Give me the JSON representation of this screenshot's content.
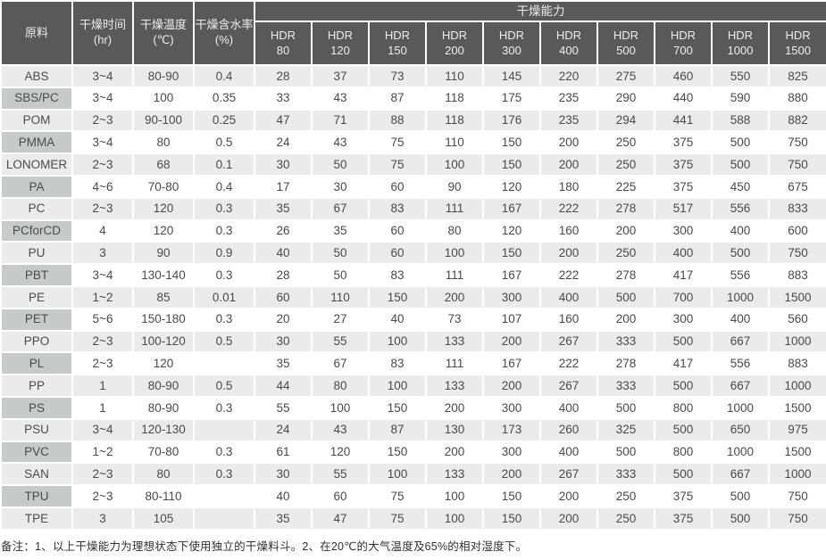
{
  "table": {
    "headers": {
      "material": "原料",
      "time": "干燥时间\n(hr)",
      "temperature": "干燥温度\n(℃)",
      "moisture": "干燥含水率\n(%)",
      "capacity_group": "干燥能力",
      "hdr_models": [
        "HDR\n80",
        "HDR\n120",
        "HDR\n150",
        "HDR\n200",
        "HDR\n300",
        "HDR\n400",
        "HDR\n500",
        "HDR\n700",
        "HDR\n1000",
        "HDR\n1500"
      ]
    },
    "rows": [
      {
        "material": "ABS",
        "time": "3~4",
        "temperature": "80-90",
        "moisture": "0.4",
        "capacities": [
          "28",
          "37",
          "73",
          "110",
          "145",
          "220",
          "275",
          "460",
          "550",
          "825"
        ]
      },
      {
        "material": "SBS/PC",
        "time": "3~4",
        "temperature": "100",
        "moisture": "0.35",
        "capacities": [
          "33",
          "43",
          "87",
          "118",
          "175",
          "235",
          "290",
          "440",
          "590",
          "880"
        ]
      },
      {
        "material": "POM",
        "time": "2~3",
        "temperature": "90-100",
        "moisture": "0.25",
        "capacities": [
          "47",
          "71",
          "88",
          "118",
          "176",
          "235",
          "294",
          "441",
          "588",
          "882"
        ]
      },
      {
        "material": "PMMA",
        "time": "3~4",
        "temperature": "80",
        "moisture": "0.5",
        "capacities": [
          "24",
          "43",
          "75",
          "110",
          "150",
          "200",
          "250",
          "375",
          "500",
          "750"
        ]
      },
      {
        "material": "LONOMER",
        "time": "2~3",
        "temperature": "68",
        "moisture": "0.1",
        "capacities": [
          "30",
          "50",
          "75",
          "100",
          "150",
          "200",
          "250",
          "375",
          "500",
          "750"
        ]
      },
      {
        "material": "PA",
        "time": "4~6",
        "temperature": "70-80",
        "moisture": "0.4",
        "capacities": [
          "17",
          "30",
          "60",
          "90",
          "120",
          "180",
          "225",
          "375",
          "450",
          "675"
        ]
      },
      {
        "material": "PC",
        "time": "2~3",
        "temperature": "120",
        "moisture": "0.3",
        "capacities": [
          "35",
          "67",
          "83",
          "111",
          "167",
          "222",
          "278",
          "517",
          "556",
          "833"
        ]
      },
      {
        "material": "PCforCD",
        "time": "4",
        "temperature": "120",
        "moisture": "0.3",
        "capacities": [
          "26",
          "35",
          "60",
          "80",
          "120",
          "160",
          "200",
          "300",
          "400",
          "600"
        ]
      },
      {
        "material": "PU",
        "time": "3",
        "temperature": "90",
        "moisture": "0.9",
        "capacities": [
          "40",
          "50",
          "60",
          "100",
          "150",
          "200",
          "250",
          "400",
          "500",
          "750"
        ]
      },
      {
        "material": "PBT",
        "time": "3~4",
        "temperature": "130-140",
        "moisture": "0.3",
        "capacities": [
          "28",
          "50",
          "83",
          "111",
          "167",
          "222",
          "278",
          "417",
          "556",
          "883"
        ]
      },
      {
        "material": "PE",
        "time": "1~2",
        "temperature": "85",
        "moisture": "0.01",
        "capacities": [
          "60",
          "110",
          "150",
          "200",
          "300",
          "400",
          "500",
          "700",
          "1000",
          "1500"
        ]
      },
      {
        "material": "PET",
        "time": "5~6",
        "temperature": "150-180",
        "moisture": "0.3",
        "capacities": [
          "20",
          "27",
          "40",
          "73",
          "107",
          "160",
          "200",
          "300",
          "400",
          "560"
        ]
      },
      {
        "material": "PPO",
        "time": "2~3",
        "temperature": "100-120",
        "moisture": "0.5",
        "capacities": [
          "30",
          "55",
          "100",
          "133",
          "200",
          "267",
          "333",
          "500",
          "667",
          "1000"
        ]
      },
      {
        "material": "PL",
        "time": "2~3",
        "temperature": "120",
        "moisture": "",
        "capacities": [
          "35",
          "67",
          "83",
          "111",
          "167",
          "222",
          "278",
          "417",
          "556",
          "883"
        ]
      },
      {
        "material": "PP",
        "time": "1",
        "temperature": "80-90",
        "moisture": "0.5",
        "capacities": [
          "44",
          "80",
          "100",
          "133",
          "200",
          "267",
          "333",
          "500",
          "667",
          "1000"
        ]
      },
      {
        "material": "PS",
        "time": "1",
        "temperature": "80-90",
        "moisture": "0.3",
        "capacities": [
          "55",
          "100",
          "150",
          "200",
          "300",
          "400",
          "500",
          "800",
          "1000",
          "1500"
        ]
      },
      {
        "material": "PSU",
        "time": "3~4",
        "temperature": "120-130",
        "moisture": "",
        "capacities": [
          "24",
          "43",
          "87",
          "130",
          "173",
          "260",
          "325",
          "500",
          "650",
          "975"
        ]
      },
      {
        "material": "PVC",
        "time": "1~2",
        "temperature": "70-80",
        "moisture": "0.3",
        "capacities": [
          "61",
          "120",
          "150",
          "200",
          "300",
          "400",
          "500",
          "800",
          "1000",
          "1500"
        ]
      },
      {
        "material": "SAN",
        "time": "2~3",
        "temperature": "80",
        "moisture": "0.3",
        "capacities": [
          "30",
          "55",
          "100",
          "133",
          "200",
          "267",
          "333",
          "500",
          "667",
          "1000"
        ]
      },
      {
        "material": "TPU",
        "time": "2~3",
        "temperature": "80-110",
        "moisture": "",
        "capacities": [
          "40",
          "60",
          "75",
          "100",
          "150",
          "200",
          "250",
          "375",
          "500",
          "750"
        ]
      },
      {
        "material": "TPE",
        "time": "3",
        "temperature": "105",
        "moisture": "",
        "capacities": [
          "35",
          "47",
          "75",
          "100",
          "150",
          "200",
          "250",
          "375",
          "500",
          "750"
        ]
      }
    ],
    "footnote": "备注：1、以上干燥能力为理想状态下使用独立的干燥料斗。2、在20℃的大气温度及65%的相对湿度下。"
  },
  "colors": {
    "header_bg": "#58595b",
    "header_text": "#eceeef",
    "material_col_bg": "#c7cacb",
    "stripe_bg": "#e9ebec",
    "row_white": "#ffffff",
    "data_text": "#47494c"
  }
}
